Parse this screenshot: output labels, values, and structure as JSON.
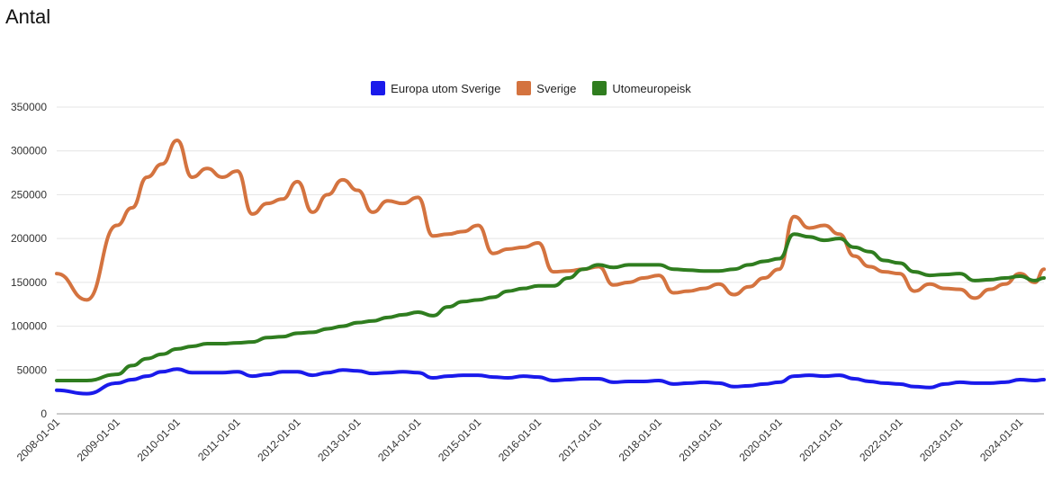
{
  "title": "Antal",
  "colors": {
    "europa": "#1a1aeb",
    "sverige": "#d4733f",
    "utomeuropeisk": "#2f7d1f",
    "grid": "#e4e4e4"
  },
  "chart_data": {
    "type": "line",
    "title": "Antal",
    "ylim": [
      0,
      350000
    ],
    "yticks": [
      0,
      50000,
      100000,
      150000,
      200000,
      250000,
      300000,
      350000
    ],
    "ytick_labels": [
      "0",
      "50000",
      "100000",
      "150000",
      "200000",
      "250000",
      "300000",
      "350000"
    ],
    "xticks": [
      "2008-01-01",
      "2009-01-01",
      "2010-01-01",
      "2011-01-01",
      "2012-01-01",
      "2013-01-01",
      "2014-01-01",
      "2015-01-01",
      "2016-01-01",
      "2017-01-01",
      "2018-01-01",
      "2019-01-01",
      "2020-01-01",
      "2021-01-01",
      "2022-01-01",
      "2023-01-01",
      "2024-01-01"
    ],
    "grid": true,
    "legend_position": "top",
    "x": [
      2008.0,
      2008.5,
      2009.0,
      2009.25,
      2009.5,
      2009.75,
      2010.0,
      2010.25,
      2010.5,
      2010.75,
      2011.0,
      2011.25,
      2011.5,
      2011.75,
      2012.0,
      2012.25,
      2012.5,
      2012.75,
      2013.0,
      2013.25,
      2013.5,
      2013.75,
      2014.0,
      2014.25,
      2014.5,
      2014.75,
      2015.0,
      2015.25,
      2015.5,
      2015.75,
      2016.0,
      2016.25,
      2016.5,
      2016.75,
      2017.0,
      2017.25,
      2017.5,
      2017.75,
      2018.0,
      2018.25,
      2018.5,
      2018.75,
      2019.0,
      2019.25,
      2019.5,
      2019.75,
      2020.0,
      2020.25,
      2020.5,
      2020.75,
      2021.0,
      2021.25,
      2021.5,
      2021.75,
      2022.0,
      2022.25,
      2022.5,
      2022.75,
      2023.0,
      2023.25,
      2023.5,
      2023.75,
      2024.0,
      2024.25,
      2024.4
    ],
    "series": [
      {
        "name": "Europa utom Sverige",
        "values": [
          27000,
          23000,
          35000,
          39000,
          43000,
          48000,
          51000,
          47000,
          47000,
          47000,
          48000,
          43000,
          45000,
          48000,
          48000,
          44000,
          47000,
          50000,
          49000,
          46000,
          47000,
          48000,
          47000,
          41000,
          43000,
          44000,
          44000,
          42000,
          41000,
          43000,
          42000,
          38000,
          39000,
          40000,
          40000,
          36000,
          37000,
          37000,
          38000,
          34000,
          35000,
          36000,
          35000,
          31000,
          32000,
          34000,
          36000,
          43000,
          44000,
          43000,
          44000,
          40000,
          37000,
          35000,
          34000,
          31000,
          30000,
          34000,
          36000,
          35000,
          35000,
          36000,
          39000,
          38000,
          39000
        ]
      },
      {
        "name": "Sverige",
        "values": [
          160000,
          130000,
          215000,
          235000,
          270000,
          285000,
          312000,
          270000,
          280000,
          270000,
          277000,
          228000,
          240000,
          245000,
          265000,
          230000,
          250000,
          267000,
          255000,
          230000,
          243000,
          240000,
          247000,
          203000,
          205000,
          208000,
          215000,
          183000,
          188000,
          190000,
          195000,
          162000,
          163000,
          165000,
          168000,
          147000,
          150000,
          155000,
          158000,
          138000,
          140000,
          143000,
          148000,
          136000,
          145000,
          155000,
          165000,
          225000,
          212000,
          215000,
          205000,
          180000,
          168000,
          162000,
          160000,
          140000,
          148000,
          143000,
          142000,
          132000,
          142000,
          148000,
          160000,
          150000,
          165000
        ]
      },
      {
        "name": "Utomeuropeisk",
        "values": [
          38000,
          38000,
          45000,
          55000,
          63000,
          68000,
          74000,
          77000,
          80000,
          80000,
          81000,
          82000,
          87000,
          88000,
          92000,
          93000,
          97000,
          100000,
          104000,
          106000,
          110000,
          113000,
          116000,
          112000,
          122000,
          128000,
          130000,
          133000,
          140000,
          143000,
          146000,
          146000,
          155000,
          165000,
          170000,
          167000,
          170000,
          170000,
          170000,
          165000,
          164000,
          163000,
          163000,
          165000,
          170000,
          174000,
          177000,
          205000,
          202000,
          198000,
          200000,
          190000,
          185000,
          175000,
          172000,
          162000,
          158000,
          159000,
          160000,
          152000,
          153000,
          155000,
          157000,
          152000,
          155000
        ]
      }
    ]
  }
}
